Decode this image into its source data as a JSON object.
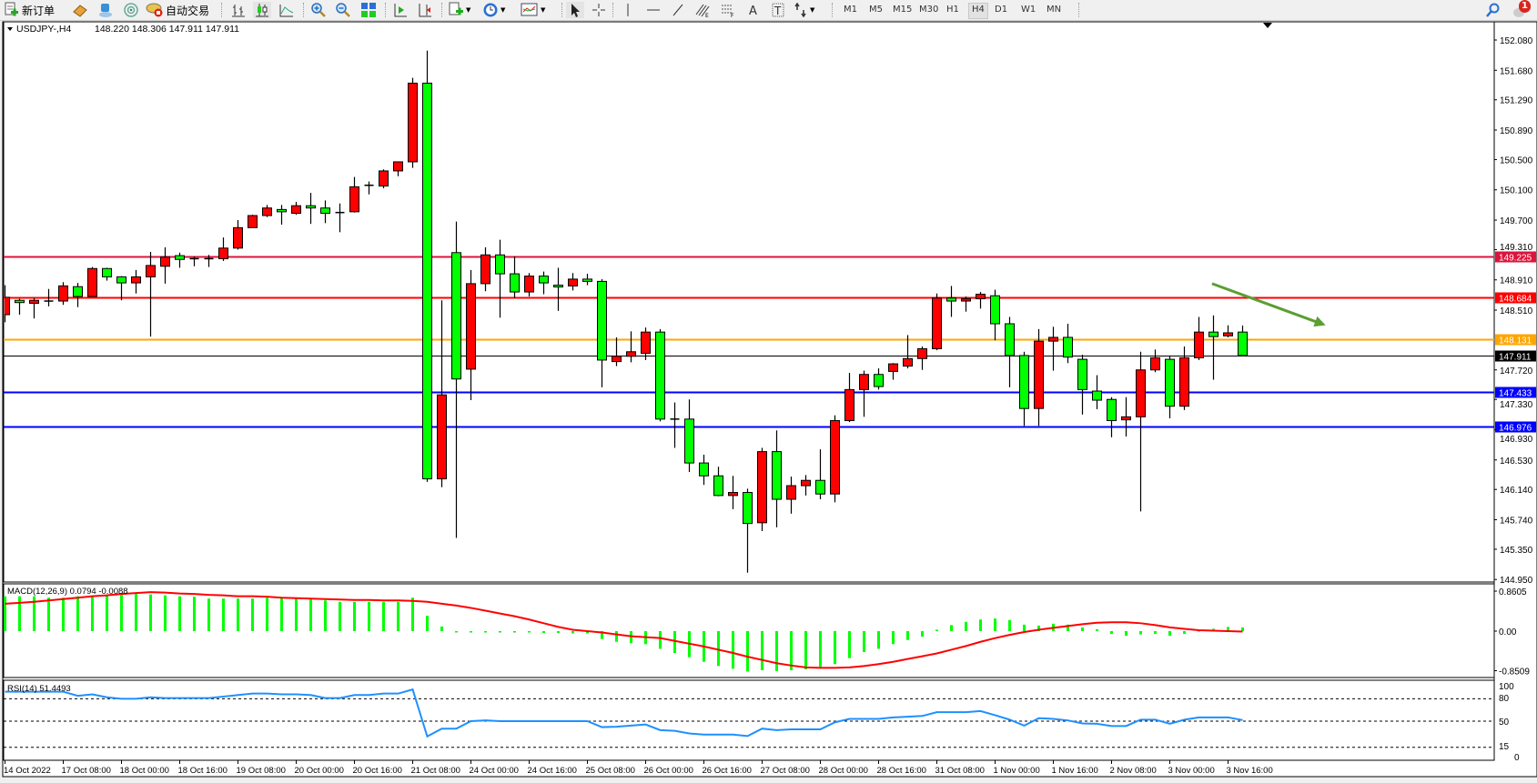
{
  "toolbar": {
    "new_order_label": "新订单",
    "auto_trading_label": "自动交易",
    "timeframes": [
      "M1",
      "M5",
      "M15",
      "M30",
      "H1",
      "H4",
      "D1",
      "W1",
      "MN"
    ],
    "active_timeframe": "H4",
    "notification_count": "1",
    "icons": [
      "new-order-icon",
      "metaeditor-icon",
      "market-icon",
      "signals-icon",
      "auto-trading-icon",
      "bar-chart-icon",
      "candlestick-icon",
      "line-chart-icon",
      "zoom-in-icon",
      "zoom-out-icon",
      "tile-windows-icon",
      "auto-scroll-icon",
      "chart-shift-icon",
      "new-chart-icon",
      "periodicity-icon",
      "indicators-icon",
      "cursor-icon",
      "crosshair-icon",
      "vertical-line-icon",
      "horizontal-line-icon",
      "trendline-icon",
      "fibo-channel-icon",
      "fibo-retracement-icon",
      "text-icon",
      "text-label-icon",
      "arrows-icon",
      "search-icon",
      "notification-icon"
    ]
  },
  "chart_header": {
    "symbol": "USDJPY-,H4",
    "ohlc": "148.220 148.306 147.911 147.911"
  },
  "chart_data": {
    "type": "candlestick",
    "bullish_color": "#ff0000",
    "bearish_color": "#00ff00",
    "price_ticks": [
      "152.080",
      "151.680",
      "151.290",
      "150.890",
      "150.500",
      "150.100",
      "149.700",
      "149.310",
      "148.910",
      "148.510",
      "147.720",
      "147.330",
      "146.930",
      "146.530",
      "146.140",
      "145.740",
      "145.350",
      "144.950"
    ],
    "time_labels": [
      "14 Oct 2022",
      "17 Oct 08:00",
      "18 Oct 00:00",
      "18 Oct 16:00",
      "19 Oct 08:00",
      "20 Oct 00:00",
      "20 Oct 16:00",
      "21 Oct 08:00",
      "24 Oct 00:00",
      "24 Oct 16:00",
      "25 Oct 08:00",
      "26 Oct 00:00",
      "26 Oct 16:00",
      "27 Oct 08:00",
      "28 Oct 00:00",
      "28 Oct 16:00",
      "31 Oct 08:00",
      "1 Nov 00:00",
      "1 Nov 16:00",
      "2 Nov 08:00",
      "3 Nov 00:00",
      "3 Nov 16:00"
    ],
    "hlines": [
      {
        "price": 149.225,
        "label": "149.225",
        "color": "#dc143c"
      },
      {
        "price": 148.684,
        "label": "148.684",
        "color": "#ff0000"
      },
      {
        "price": 148.131,
        "label": "148.131",
        "color": "#ffa500"
      },
      {
        "price": 147.911,
        "label": "147.911",
        "color": "#000000",
        "bid": true
      },
      {
        "price": 147.433,
        "label": "147.433",
        "color": "#0000ff"
      },
      {
        "price": 146.976,
        "label": "146.976",
        "color": "#0000ff"
      }
    ],
    "arrow": {
      "color": "#5b9e33",
      "from": {
        "bar": 82.9,
        "price": 148.86
      },
      "to": {
        "bar": 90.7,
        "price": 148.31
      }
    },
    "candles_ohlc": [
      [
        148.45,
        148.84,
        148.35,
        148.68
      ],
      [
        148.64,
        148.66,
        148.45,
        148.61
      ],
      [
        148.6,
        148.67,
        148.4,
        148.64
      ],
      [
        148.63,
        148.79,
        148.56,
        148.63
      ],
      [
        148.63,
        148.88,
        148.58,
        148.83
      ],
      [
        148.82,
        148.87,
        148.55,
        148.69
      ],
      [
        148.69,
        149.08,
        148.69,
        149.06
      ],
      [
        149.06,
        149.07,
        148.9,
        148.95
      ],
      [
        148.95,
        148.96,
        148.64,
        148.87
      ],
      [
        148.87,
        149.04,
        148.73,
        148.95
      ],
      [
        148.95,
        149.28,
        148.16,
        149.1
      ],
      [
        149.09,
        149.34,
        148.86,
        149.21
      ],
      [
        149.23,
        149.27,
        149.07,
        149.18
      ],
      [
        149.19,
        149.22,
        149.09,
        149.19
      ],
      [
        149.19,
        149.24,
        149.08,
        149.19
      ],
      [
        149.19,
        149.47,
        149.16,
        149.33
      ],
      [
        149.33,
        149.7,
        149.31,
        149.6
      ],
      [
        149.6,
        149.77,
        149.6,
        149.76
      ],
      [
        149.76,
        149.9,
        149.74,
        149.86
      ],
      [
        149.84,
        149.9,
        149.64,
        149.81
      ],
      [
        149.79,
        149.94,
        149.77,
        149.89
      ],
      [
        149.89,
        150.06,
        149.65,
        149.86
      ],
      [
        149.86,
        149.96,
        149.66,
        149.79
      ],
      [
        149.8,
        149.92,
        149.54,
        149.8
      ],
      [
        149.81,
        150.27,
        149.8,
        150.14
      ],
      [
        150.16,
        150.21,
        150.04,
        150.16
      ],
      [
        150.15,
        150.37,
        150.12,
        150.35
      ],
      [
        150.35,
        150.47,
        150.28,
        150.47
      ],
      [
        150.47,
        151.58,
        150.39,
        151.51
      ],
      [
        151.51,
        151.94,
        146.24,
        146.28
      ],
      [
        146.28,
        148.64,
        146.17,
        147.39
      ],
      [
        149.27,
        149.68,
        145.5,
        147.6
      ],
      [
        147.73,
        149.04,
        147.32,
        148.86
      ],
      [
        148.86,
        149.34,
        148.76,
        149.24
      ],
      [
        149.24,
        149.44,
        148.41,
        148.99
      ],
      [
        148.99,
        149.22,
        148.67,
        148.75
      ],
      [
        148.75,
        149.0,
        148.69,
        148.96
      ],
      [
        148.96,
        149.02,
        148.72,
        148.87
      ],
      [
        148.84,
        149.07,
        148.5,
        148.82
      ],
      [
        148.83,
        149.0,
        148.77,
        148.92
      ],
      [
        148.92,
        148.99,
        148.84,
        148.89
      ],
      [
        148.89,
        148.92,
        147.49,
        147.85
      ],
      [
        147.83,
        148.15,
        147.77,
        147.9
      ],
      [
        147.9,
        148.23,
        147.82,
        147.96
      ],
      [
        147.94,
        148.28,
        147.85,
        148.22
      ],
      [
        148.22,
        148.26,
        147.04,
        147.07
      ],
      [
        147.07,
        147.29,
        146.69,
        147.07
      ],
      [
        147.07,
        147.33,
        146.37,
        146.49
      ],
      [
        146.49,
        146.6,
        146.2,
        146.32
      ],
      [
        146.32,
        146.44,
        146.05,
        146.06
      ],
      [
        146.06,
        146.32,
        145.88,
        146.1
      ],
      [
        146.1,
        146.15,
        145.04,
        145.69
      ],
      [
        145.7,
        146.69,
        145.59,
        146.64
      ],
      [
        146.64,
        146.92,
        145.64,
        146.01
      ],
      [
        146.01,
        146.31,
        145.82,
        146.19
      ],
      [
        146.19,
        146.33,
        146.06,
        146.26
      ],
      [
        146.26,
        146.67,
        146.01,
        146.08
      ],
      [
        146.08,
        147.12,
        145.97,
        147.05
      ],
      [
        147.05,
        147.68,
        147.03,
        147.46
      ],
      [
        147.46,
        147.71,
        147.1,
        147.66
      ],
      [
        147.66,
        147.74,
        147.46,
        147.5
      ],
      [
        147.7,
        147.81,
        147.59,
        147.8
      ],
      [
        147.77,
        148.18,
        147.74,
        147.87
      ],
      [
        147.87,
        148.03,
        147.72,
        148.0
      ],
      [
        148.0,
        148.73,
        147.98,
        148.67
      ],
      [
        148.67,
        148.83,
        148.42,
        148.63
      ],
      [
        148.63,
        148.69,
        148.49,
        148.66
      ],
      [
        148.66,
        148.75,
        148.53,
        148.72
      ],
      [
        148.7,
        148.78,
        148.11,
        148.33
      ],
      [
        148.33,
        148.42,
        147.49,
        147.91
      ],
      [
        147.91,
        147.96,
        146.98,
        147.21
      ],
      [
        147.21,
        148.26,
        146.98,
        148.1
      ],
      [
        148.1,
        148.29,
        147.71,
        148.15
      ],
      [
        148.15,
        148.33,
        147.81,
        147.89
      ],
      [
        147.86,
        147.92,
        147.13,
        147.46
      ],
      [
        147.44,
        147.65,
        147.2,
        147.32
      ],
      [
        147.33,
        147.36,
        146.83,
        147.05
      ],
      [
        147.06,
        147.36,
        146.84,
        147.1
      ],
      [
        147.1,
        147.96,
        145.85,
        147.72
      ],
      [
        147.72,
        147.99,
        147.69,
        147.88
      ],
      [
        147.86,
        147.91,
        147.08,
        147.24
      ],
      [
        147.24,
        148.03,
        147.19,
        147.88
      ],
      [
        147.88,
        148.42,
        147.85,
        148.22
      ],
      [
        148.22,
        148.44,
        147.59,
        148.16
      ],
      [
        148.17,
        148.31,
        148.15,
        148.21
      ],
      [
        148.22,
        148.306,
        147.911,
        147.911
      ]
    ],
    "macd": {
      "label": "MACD(12,26,9) 0.0794 -0.0088",
      "ticks": [
        "0.8605",
        "0.00",
        "-0.8509"
      ],
      "range": [
        -0.8509,
        0.8605
      ],
      "histogram_color": "#00ff00",
      "signal_color": "#ff0000",
      "main": [
        0.75,
        0.75,
        0.75,
        0.72,
        0.72,
        0.75,
        0.75,
        0.78,
        0.78,
        0.8,
        0.79,
        0.77,
        0.75,
        0.74,
        0.7,
        0.7,
        0.7,
        0.7,
        0.72,
        0.72,
        0.7,
        0.69,
        0.66,
        0.63,
        0.63,
        0.63,
        0.63,
        0.63,
        0.72,
        0.33,
        0.1,
        -0.03,
        -0.03,
        -0.03,
        -0.03,
        -0.03,
        -0.03,
        -0.04,
        -0.04,
        -0.05,
        -0.05,
        -0.17,
        -0.23,
        -0.26,
        -0.28,
        -0.38,
        -0.47,
        -0.56,
        -0.66,
        -0.75,
        -0.81,
        -0.87,
        -0.84,
        -0.86,
        -0.84,
        -0.82,
        -0.77,
        -0.71,
        -0.58,
        -0.45,
        -0.38,
        -0.28,
        -0.19,
        -0.12,
        0.03,
        0.13,
        0.2,
        0.25,
        0.27,
        0.24,
        0.14,
        0.12,
        0.16,
        0.14,
        0.08,
        0.04,
        -0.06,
        -0.1,
        -0.07,
        -0.06,
        -0.1,
        -0.06,
        0.01,
        0.05,
        0.09,
        0.0794
      ],
      "signal": [
        0.59,
        0.61,
        0.63,
        0.66,
        0.69,
        0.72,
        0.75,
        0.77,
        0.8,
        0.82,
        0.84,
        0.83,
        0.81,
        0.8,
        0.78,
        0.77,
        0.75,
        0.75,
        0.74,
        0.72,
        0.71,
        0.7,
        0.69,
        0.68,
        0.67,
        0.67,
        0.66,
        0.66,
        0.65,
        0.63,
        0.59,
        0.55,
        0.5,
        0.44,
        0.38,
        0.32,
        0.25,
        0.17,
        0.09,
        0.03,
        0.0,
        -0.03,
        -0.07,
        -0.11,
        -0.13,
        -0.15,
        -0.21,
        -0.27,
        -0.33,
        -0.4,
        -0.47,
        -0.55,
        -0.62,
        -0.69,
        -0.74,
        -0.78,
        -0.79,
        -0.79,
        -0.78,
        -0.75,
        -0.71,
        -0.66,
        -0.6,
        -0.54,
        -0.48,
        -0.4,
        -0.32,
        -0.23,
        -0.15,
        -0.08,
        -0.02,
        0.03,
        0.07,
        0.11,
        0.15,
        0.18,
        0.19,
        0.19,
        0.17,
        0.13,
        0.08,
        0.05,
        0.02,
        0.01,
        0.0,
        -0.0088
      ]
    },
    "rsi": {
      "label": "RSI(14) 51.4493",
      "ticks": [
        "100",
        "80",
        "50",
        "15",
        "0"
      ],
      "levels": [
        80,
        50,
        15
      ],
      "color": "#1e90ff",
      "values": [
        89.5,
        89.5,
        89.5,
        89.5,
        89.5,
        84,
        86,
        82,
        80,
        80,
        82,
        81,
        81,
        81,
        81,
        83,
        85,
        87,
        87,
        86,
        86,
        85,
        81,
        81,
        85,
        85,
        87,
        87,
        92.5,
        29.5,
        40,
        40,
        50,
        51,
        50,
        50,
        50,
        50,
        50,
        50,
        50,
        42,
        42.5,
        44,
        45.5,
        38,
        37,
        33.5,
        32,
        32,
        32,
        30,
        40,
        38,
        39,
        39,
        39,
        48.5,
        53,
        53,
        53,
        55,
        56,
        57,
        62,
        62,
        62,
        63.5,
        58,
        52,
        44,
        54,
        53,
        51,
        47,
        46.5,
        43.5,
        43.5,
        52,
        52,
        46.5,
        52,
        55,
        55,
        55,
        51.4493
      ]
    }
  }
}
